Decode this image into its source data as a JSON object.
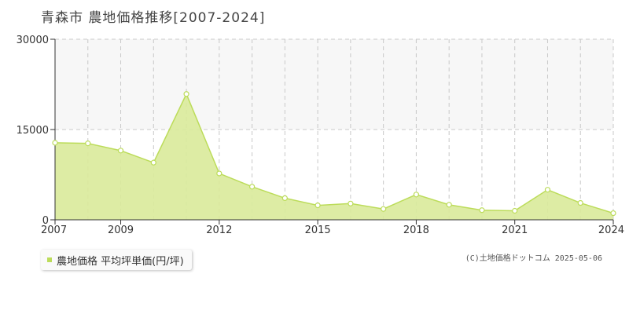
{
  "title": "青森市 農地価格推移[2007-2024]",
  "legend_label": "農地価格 平均坪単価(円/坪)",
  "copyright": "(C)土地価格ドットコム 2025-05-06",
  "colors": {
    "fill": "#d9ea9a",
    "line": "#bcdc5a",
    "marker_fill": "#ffffff",
    "grid": "#c8c8c8",
    "band": "#f7f7f7",
    "axis": "#333333"
  },
  "chart_data": {
    "type": "area",
    "x": [
      2007,
      2008,
      2009,
      2010,
      2011,
      2012,
      2013,
      2014,
      2015,
      2016,
      2017,
      2018,
      2019,
      2020,
      2021,
      2022,
      2023,
      2024
    ],
    "series": [
      {
        "name": "農地価格 平均坪単価(円/坪)",
        "values": [
          12800,
          12700,
          11500,
          9500,
          20900,
          7700,
          5500,
          3600,
          2400,
          2700,
          1800,
          4200,
          2500,
          1600,
          1500,
          5000,
          2800,
          1100
        ]
      }
    ],
    "x_ticks": [
      2007,
      2009,
      2012,
      2015,
      2018,
      2021,
      2024
    ],
    "x_tick_labels": [
      "2007",
      "2009",
      "2012",
      "2015",
      "2018",
      "2021",
      "2024"
    ],
    "y_ticks": [
      0,
      15000,
      30000
    ],
    "y_tick_labels": [
      "0",
      "15000",
      "30000"
    ],
    "ylim": [
      0,
      30000
    ],
    "xlim": [
      2007,
      2024
    ],
    "grid": true,
    "legend_position": "bottom-left"
  }
}
